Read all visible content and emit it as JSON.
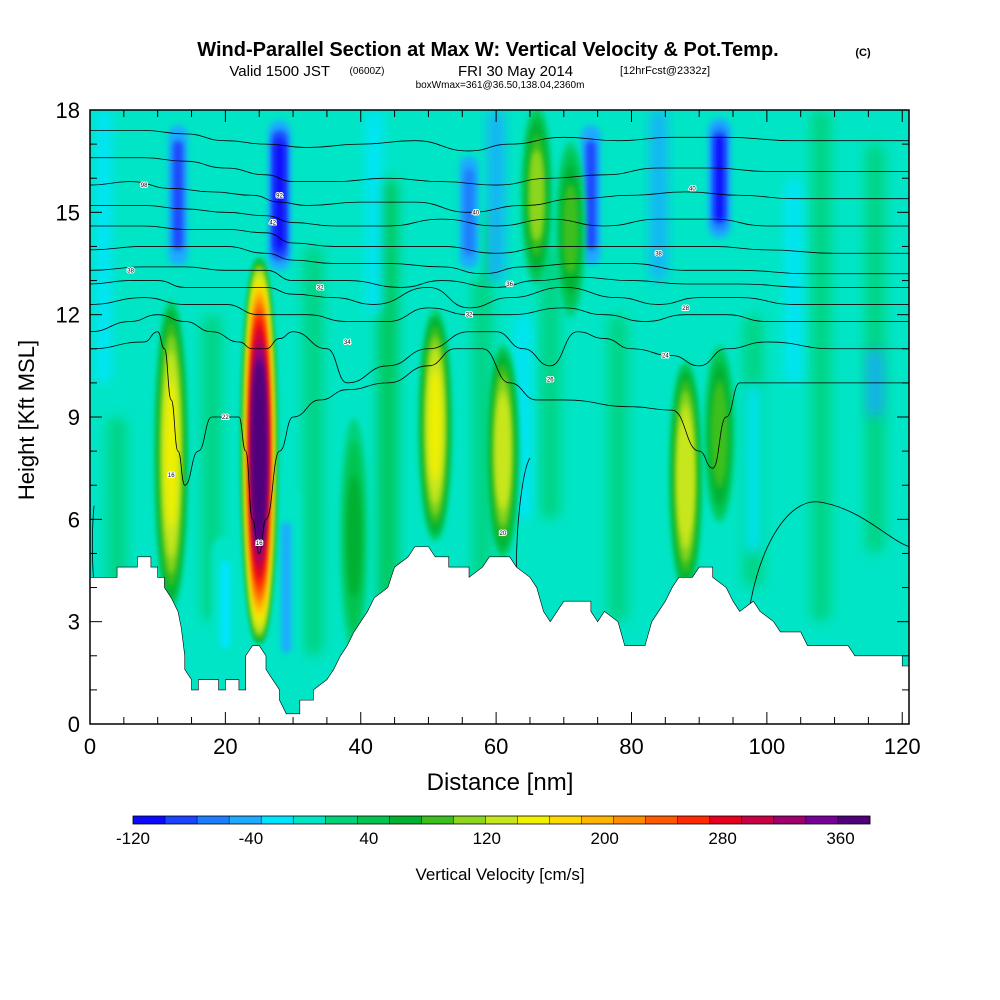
{
  "chart_data": {
    "type": "heatmap",
    "title": {
      "main": "Wind-Parallel Section at Max W: Vertical Velocity & Pot.Temp.",
      "copyright": "(C)",
      "valid_prefix": "Valid 1500 JST",
      "valid_utc": "(0600Z)",
      "valid_date": "FRI 30 May 2014",
      "forecast": "[12hrFcst@2332z]",
      "box": "boxWmax=361@36.50,138.04,2360m"
    },
    "xlabel": "Distance [nm]",
    "ylabel": "Height [Kft MSL]",
    "xlim": [
      0,
      121
    ],
    "ylim": [
      0,
      18
    ],
    "x_ticks": [
      0,
      20,
      40,
      60,
      80,
      100,
      120
    ],
    "y_ticks": [
      0,
      3,
      6,
      9,
      12,
      15,
      18
    ],
    "colorbar": {
      "label": "Vertical Velocity [cm/s]",
      "tick_labels": [
        "-120",
        "-40",
        "40",
        "120",
        "200",
        "280",
        "360"
      ],
      "tick_values": [
        -120,
        -40,
        40,
        120,
        200,
        280,
        360
      ],
      "range": [
        -120,
        380
      ],
      "colors": [
        "#0a0aff",
        "#1a44ff",
        "#1e7dff",
        "#1eaaff",
        "#00e5ff",
        "#00e5c5",
        "#00d27a",
        "#00c44f",
        "#00b030",
        "#3cbf1e",
        "#8cd61e",
        "#c8e61e",
        "#f0f000",
        "#ffd800",
        "#ffb400",
        "#ff8c00",
        "#ff5a00",
        "#ff2a00",
        "#e6001e",
        "#c80046",
        "#a0006e",
        "#780096",
        "#50007a"
      ]
    },
    "updrafts": [
      {
        "x": 12,
        "z_bottom": 3.5,
        "z_top": 12.3,
        "w": 150
      },
      {
        "x": 25,
        "z_bottom": 2.5,
        "z_top": 13.5,
        "w": 361
      },
      {
        "x": 51,
        "z_bottom": 5.5,
        "z_top": 12.0,
        "w": 150
      },
      {
        "x": 61,
        "z_bottom": 5.0,
        "z_top": 11.0,
        "w": 130
      },
      {
        "x": 88,
        "z_bottom": 4.0,
        "z_top": 10.5,
        "w": 140
      },
      {
        "x": 93,
        "z_bottom": 6.0,
        "z_top": 11.0,
        "w": 90
      },
      {
        "x": 39,
        "z_bottom": 2.0,
        "z_top": 9.0,
        "w": 60
      },
      {
        "x": 66,
        "z_bottom": 13.0,
        "z_top": 18.0,
        "w": 100
      },
      {
        "x": 71,
        "z_bottom": 12.0,
        "z_top": 17.0,
        "w": 80
      }
    ],
    "downdrafts": [
      {
        "x": 13,
        "z_bottom": 13.0,
        "z_top": 18.0,
        "w": -90
      },
      {
        "x": 28,
        "z_bottom": 13.0,
        "z_top": 18.0,
        "w": -120
      },
      {
        "x": 56,
        "z_bottom": 13.0,
        "z_top": 17.0,
        "w": -70
      },
      {
        "x": 74,
        "z_bottom": 13.0,
        "z_top": 18.0,
        "w": -80
      },
      {
        "x": 93,
        "z_bottom": 14.0,
        "z_top": 18.0,
        "w": -100
      },
      {
        "x": 29,
        "z_bottom": 1.0,
        "z_top": 7.0,
        "w": -45
      },
      {
        "x": 20,
        "z_bottom": 1.5,
        "z_top": 5.5,
        "w": -30
      }
    ],
    "terrain_kft": [
      [
        0,
        4.3
      ],
      [
        4,
        4.3
      ],
      [
        4,
        4.6
      ],
      [
        7,
        4.6
      ],
      [
        7,
        4.9
      ],
      [
        9,
        4.9
      ],
      [
        9,
        4.6
      ],
      [
        10,
        4.6
      ],
      [
        10,
        4.3
      ],
      [
        11,
        4.3
      ],
      [
        11,
        4.0
      ],
      [
        12,
        3.7
      ],
      [
        13,
        3.3
      ],
      [
        13.5,
        2.8
      ],
      [
        14,
        2.0
      ],
      [
        14,
        1.6
      ],
      [
        15,
        1.3
      ],
      [
        15,
        1.0
      ],
      [
        16,
        1.0
      ],
      [
        16,
        1.3
      ],
      [
        17,
        1.3
      ],
      [
        19,
        1.3
      ],
      [
        19,
        1.0
      ],
      [
        20,
        1.0
      ],
      [
        20,
        1.3
      ],
      [
        22,
        1.3
      ],
      [
        22,
        1.0
      ],
      [
        23,
        1.0
      ],
      [
        23,
        2.0
      ],
      [
        24,
        2.3
      ],
      [
        25,
        2.3
      ],
      [
        26,
        2.0
      ],
      [
        26,
        1.6
      ],
      [
        27,
        1.3
      ],
      [
        28,
        1.0
      ],
      [
        28,
        0.7
      ],
      [
        29,
        0.3
      ],
      [
        31,
        0.3
      ],
      [
        31,
        0.7
      ],
      [
        33,
        0.7
      ],
      [
        33,
        1.0
      ],
      [
        35,
        1.3
      ],
      [
        36,
        1.6
      ],
      [
        37,
        2.0
      ],
      [
        38,
        2.3
      ],
      [
        39,
        2.7
      ],
      [
        40,
        3.0
      ],
      [
        41,
        3.3
      ],
      [
        42,
        3.7
      ],
      [
        44,
        4.0
      ],
      [
        45,
        4.6
      ],
      [
        47,
        4.9
      ],
      [
        48,
        5.2
      ],
      [
        50,
        5.2
      ],
      [
        51,
        4.9
      ],
      [
        53,
        4.9
      ],
      [
        53,
        4.6
      ],
      [
        56,
        4.6
      ],
      [
        56,
        4.3
      ],
      [
        58,
        4.6
      ],
      [
        59,
        4.9
      ],
      [
        62,
        4.9
      ],
      [
        63,
        4.6
      ],
      [
        65,
        4.3
      ],
      [
        66,
        4.0
      ],
      [
        67,
        3.3
      ],
      [
        68,
        3.0
      ],
      [
        69,
        3.3
      ],
      [
        70,
        3.6
      ],
      [
        74,
        3.6
      ],
      [
        74,
        3.3
      ],
      [
        75,
        3.0
      ],
      [
        76,
        3.3
      ],
      [
        78,
        3.0
      ],
      [
        79,
        2.3
      ],
      [
        82,
        2.3
      ],
      [
        83,
        3.0
      ],
      [
        84,
        3.3
      ],
      [
        85,
        3.6
      ],
      [
        86,
        4.0
      ],
      [
        87,
        4.3
      ],
      [
        89,
        4.3
      ],
      [
        90,
        4.6
      ],
      [
        92,
        4.6
      ],
      [
        92,
        4.3
      ],
      [
        94,
        4.0
      ],
      [
        95,
        3.6
      ],
      [
        96,
        3.3
      ],
      [
        98,
        3.6
      ],
      [
        99,
        3.3
      ],
      [
        101,
        3.0
      ],
      [
        102,
        2.7
      ],
      [
        105,
        2.7
      ],
      [
        106,
        2.3
      ],
      [
        112,
        2.3
      ],
      [
        113,
        2.0
      ],
      [
        120,
        2.0
      ],
      [
        120,
        1.7
      ],
      [
        121,
        1.7
      ]
    ],
    "isentropes_kft": [
      [
        [
          0,
          11.0
        ],
        [
          8,
          11.2
        ],
        [
          10,
          11.5
        ],
        [
          11,
          11.0
        ],
        [
          12,
          9.5
        ],
        [
          13,
          8.0
        ],
        [
          14,
          7.0
        ],
        [
          16,
          8.0
        ],
        [
          18,
          9.0
        ],
        [
          20,
          9.0
        ],
        [
          22,
          9.0
        ],
        [
          23,
          8.0
        ],
        [
          24,
          6.0
        ],
        [
          25,
          5.0
        ],
        [
          26,
          6.0
        ],
        [
          28,
          8.0
        ],
        [
          30,
          9.0
        ],
        [
          34,
          9.5
        ],
        [
          38,
          9.8
        ],
        [
          44,
          10.0
        ],
        [
          50,
          10.5
        ],
        [
          54,
          11.0
        ],
        [
          58,
          11.0
        ],
        [
          62,
          10.0
        ],
        [
          66,
          9.5
        ],
        [
          70,
          9.5
        ],
        [
          80,
          9.3
        ],
        [
          86,
          9.2
        ],
        [
          90,
          8.0
        ],
        [
          92,
          7.5
        ],
        [
          94,
          9.0
        ],
        [
          96,
          10.0
        ],
        [
          100,
          10.0
        ],
        [
          110,
          10.0
        ],
        [
          121,
          10.0
        ]
      ],
      [
        [
          0,
          11.5
        ],
        [
          6,
          11.8
        ],
        [
          10,
          12.0
        ],
        [
          14,
          11.8
        ],
        [
          18,
          11.5
        ],
        [
          22,
          11.2
        ],
        [
          24,
          11.0
        ],
        [
          26,
          11.0
        ],
        [
          28,
          11.3
        ],
        [
          30,
          11.5
        ],
        [
          35,
          11.0
        ],
        [
          38,
          10.0
        ],
        [
          44,
          10.5
        ],
        [
          50,
          11.0
        ],
        [
          56,
          11.5
        ],
        [
          60,
          11.5
        ],
        [
          64,
          11.0
        ],
        [
          68,
          10.5
        ],
        [
          72,
          11.5
        ],
        [
          76,
          11.3
        ],
        [
          80,
          11.0
        ],
        [
          86,
          10.8
        ],
        [
          90,
          10.5
        ],
        [
          94,
          11.0
        ],
        [
          100,
          11.2
        ],
        [
          110,
          11.0
        ],
        [
          121,
          11.0
        ]
      ],
      [
        [
          0,
          12.3
        ],
        [
          8,
          12.5
        ],
        [
          14,
          12.3
        ],
        [
          20,
          12.3
        ],
        [
          25,
          12.0
        ],
        [
          28,
          12.0
        ],
        [
          32,
          12.0
        ],
        [
          38,
          11.8
        ],
        [
          44,
          11.8
        ],
        [
          50,
          12.2
        ],
        [
          56,
          12.0
        ],
        [
          62,
          12.0
        ],
        [
          70,
          12.2
        ],
        [
          76,
          12.0
        ],
        [
          82,
          11.8
        ],
        [
          88,
          12.0
        ],
        [
          94,
          12.0
        ],
        [
          100,
          11.8
        ],
        [
          110,
          11.8
        ],
        [
          121,
          11.8
        ]
      ],
      [
        [
          0,
          12.9
        ],
        [
          6,
          13.0
        ],
        [
          10,
          13.0
        ],
        [
          14,
          12.8
        ],
        [
          20,
          12.8
        ],
        [
          26,
          12.8
        ],
        [
          30,
          12.6
        ],
        [
          36,
          12.5
        ],
        [
          42,
          12.3
        ],
        [
          50,
          12.8
        ],
        [
          56,
          12.2
        ],
        [
          62,
          12.5
        ],
        [
          70,
          12.8
        ],
        [
          78,
          12.5
        ],
        [
          84,
          12.3
        ],
        [
          90,
          12.5
        ],
        [
          96,
          12.5
        ],
        [
          104,
          12.3
        ],
        [
          112,
          12.3
        ],
        [
          121,
          12.3
        ]
      ],
      [
        [
          0,
          13.3
        ],
        [
          8,
          13.4
        ],
        [
          14,
          13.4
        ],
        [
          20,
          13.3
        ],
        [
          26,
          13.3
        ],
        [
          30,
          13.0
        ],
        [
          38,
          13.0
        ],
        [
          46,
          12.8
        ],
        [
          52,
          13.0
        ],
        [
          60,
          12.8
        ],
        [
          66,
          13.0
        ],
        [
          72,
          13.1
        ],
        [
          80,
          13.0
        ],
        [
          88,
          12.9
        ],
        [
          96,
          12.9
        ],
        [
          106,
          12.8
        ],
        [
          121,
          12.8
        ]
      ],
      [
        [
          0,
          13.9
        ],
        [
          8,
          14.0
        ],
        [
          14,
          14.0
        ],
        [
          20,
          14.0
        ],
        [
          26,
          13.8
        ],
        [
          30,
          13.6
        ],
        [
          36,
          13.5
        ],
        [
          44,
          13.5
        ],
        [
          52,
          13.4
        ],
        [
          58,
          13.2
        ],
        [
          64,
          13.4
        ],
        [
          72,
          13.5
        ],
        [
          80,
          13.5
        ],
        [
          88,
          13.3
        ],
        [
          96,
          13.3
        ],
        [
          106,
          13.2
        ],
        [
          121,
          13.2
        ]
      ],
      [
        [
          0,
          14.6
        ],
        [
          8,
          14.6
        ],
        [
          14,
          14.5
        ],
        [
          20,
          14.5
        ],
        [
          26,
          14.4
        ],
        [
          30,
          14.1
        ],
        [
          36,
          14.0
        ],
        [
          44,
          14.0
        ],
        [
          52,
          14.0
        ],
        [
          60,
          13.8
        ],
        [
          68,
          14.0
        ],
        [
          76,
          14.0
        ],
        [
          84,
          14.0
        ],
        [
          92,
          14.0
        ],
        [
          100,
          13.9
        ],
        [
          110,
          13.8
        ],
        [
          121,
          13.8
        ]
      ],
      [
        [
          0,
          15.2
        ],
        [
          8,
          15.2
        ],
        [
          14,
          15.1
        ],
        [
          20,
          15.0
        ],
        [
          26,
          14.9
        ],
        [
          30,
          14.7
        ],
        [
          36,
          14.6
        ],
        [
          44,
          14.6
        ],
        [
          52,
          14.8
        ],
        [
          60,
          14.6
        ],
        [
          68,
          14.8
        ],
        [
          76,
          14.6
        ],
        [
          84,
          14.8
        ],
        [
          92,
          14.8
        ],
        [
          100,
          14.6
        ],
        [
          110,
          14.6
        ],
        [
          121,
          14.6
        ]
      ],
      [
        [
          0,
          15.8
        ],
        [
          6,
          15.9
        ],
        [
          12,
          15.7
        ],
        [
          18,
          15.6
        ],
        [
          24,
          15.5
        ],
        [
          28,
          15.3
        ],
        [
          32,
          15.2
        ],
        [
          40,
          15.3
        ],
        [
          48,
          15.3
        ],
        [
          56,
          15.0
        ],
        [
          64,
          15.2
        ],
        [
          72,
          15.4
        ],
        [
          80,
          15.5
        ],
        [
          88,
          15.6
        ],
        [
          96,
          15.5
        ],
        [
          104,
          15.4
        ],
        [
          112,
          15.4
        ],
        [
          121,
          15.4
        ]
      ],
      [
        [
          0,
          16.6
        ],
        [
          8,
          16.6
        ],
        [
          14,
          16.5
        ],
        [
          20,
          16.3
        ],
        [
          26,
          16.1
        ],
        [
          30,
          15.9
        ],
        [
          36,
          15.9
        ],
        [
          44,
          16.0
        ],
        [
          52,
          15.9
        ],
        [
          60,
          15.8
        ],
        [
          68,
          16.0
        ],
        [
          76,
          16.1
        ],
        [
          84,
          16.3
        ],
        [
          92,
          16.3
        ],
        [
          100,
          16.2
        ],
        [
          110,
          16.2
        ],
        [
          121,
          16.2
        ]
      ],
      [
        [
          0,
          17.4
        ],
        [
          8,
          17.4
        ],
        [
          14,
          17.3
        ],
        [
          20,
          17.1
        ],
        [
          26,
          17.0
        ],
        [
          32,
          16.9
        ],
        [
          40,
          17.0
        ],
        [
          48,
          17.1
        ],
        [
          56,
          16.8
        ],
        [
          62,
          17.0
        ],
        [
          70,
          17.2
        ],
        [
          78,
          17.1
        ],
        [
          86,
          17.2
        ],
        [
          94,
          17.2
        ],
        [
          104,
          17.1
        ],
        [
          121,
          17.1
        ]
      ]
    ],
    "isentrope_labels": [
      {
        "text": "98",
        "x": 8,
        "z": 15.8
      },
      {
        "text": "92",
        "x": 28,
        "z": 15.5
      },
      {
        "text": "42",
        "x": 27,
        "z": 14.7
      },
      {
        "text": "38",
        "x": 6,
        "z": 13.3
      },
      {
        "text": "40",
        "x": 57,
        "z": 15.0
      },
      {
        "text": "40",
        "x": 89,
        "z": 15.7
      },
      {
        "text": "38",
        "x": 84,
        "z": 13.8
      },
      {
        "text": "36",
        "x": 62,
        "z": 12.9
      },
      {
        "text": "32",
        "x": 34,
        "z": 12.8
      },
      {
        "text": "32",
        "x": 56,
        "z": 12.0
      },
      {
        "text": "28",
        "x": 88,
        "z": 12.2
      },
      {
        "text": "34",
        "x": 38,
        "z": 11.2
      },
      {
        "text": "26",
        "x": 68,
        "z": 10.1
      },
      {
        "text": "24",
        "x": 85,
        "z": 10.8
      },
      {
        "text": "22",
        "x": 20,
        "z": 9.0
      },
      {
        "text": "16",
        "x": 12,
        "z": 7.3
      },
      {
        "text": "16",
        "x": 25,
        "z": 5.3
      },
      {
        "text": "20",
        "x": 61,
        "z": 5.6
      }
    ]
  }
}
